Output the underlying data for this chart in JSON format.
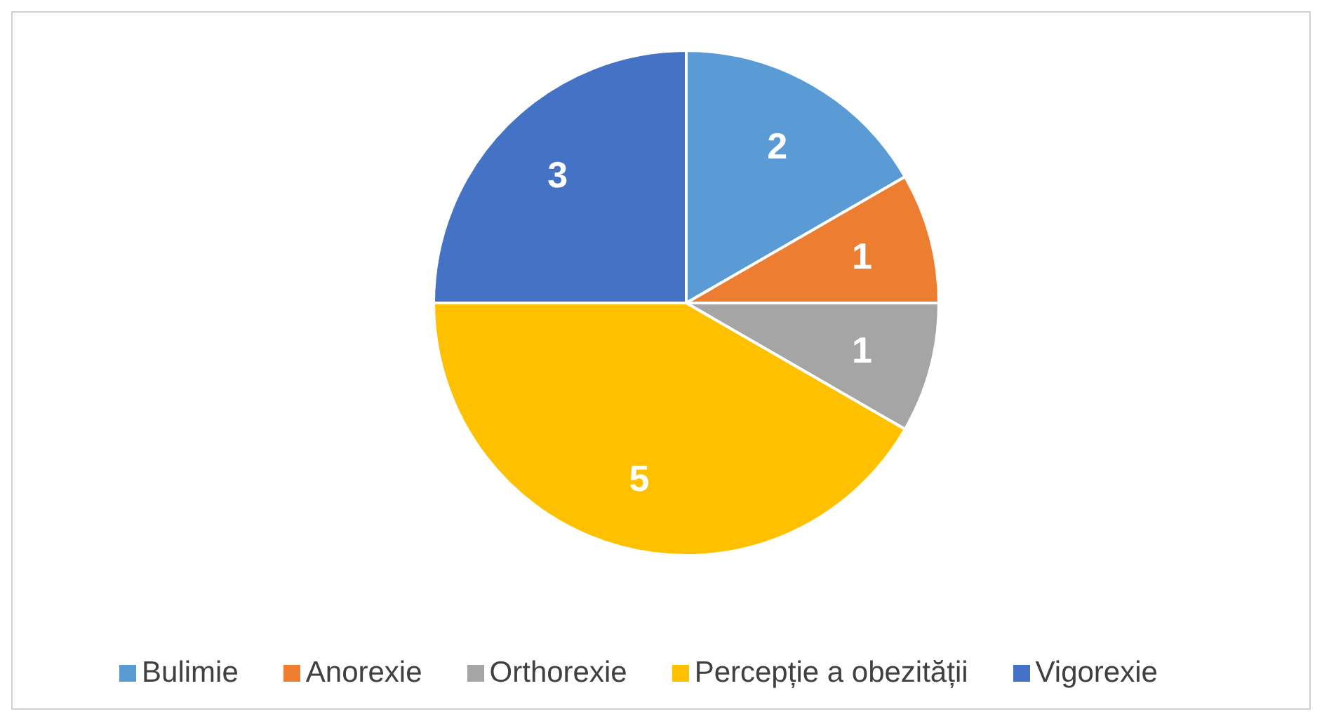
{
  "chart_data": {
    "type": "pie",
    "categories": [
      "Bulimie",
      "Anorexie",
      "Orthorexie",
      "Percepție a obezității",
      "Vigorexie"
    ],
    "values": [
      2,
      1,
      1,
      5,
      3
    ],
    "colors": [
      "#5b9bd5",
      "#ed7d31",
      "#a5a5a5",
      "#ffc000",
      "#4472c4"
    ],
    "data_labels": true,
    "legend": "bottom"
  }
}
